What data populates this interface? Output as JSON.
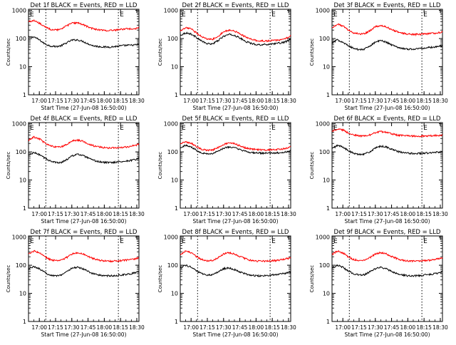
{
  "colors": {
    "events": "#000000",
    "lld": "#ff0000",
    "axis": "#000000",
    "dotted": "#000000"
  },
  "common": {
    "ylabel": "Counts/sec",
    "xlabel": "Start Time (27-Jun-08 16:50:00)",
    "x_tick_labels": [
      "17:00",
      "17:15",
      "17:30",
      "17:45",
      "18:00",
      "18:15",
      "18:30"
    ],
    "x_tick_minutes": [
      10,
      25,
      40,
      55,
      70,
      85,
      100
    ],
    "y_tick_labels": [
      "1",
      "10",
      "100",
      "1000"
    ],
    "y_tick_values": [
      1,
      10,
      100,
      1000
    ],
    "xlim_minutes": [
      0,
      102
    ],
    "ylim": [
      1,
      1100
    ],
    "yscale": "log",
    "e_marker": "E",
    "dotted_lines_minutes": [
      16,
      83
    ]
  },
  "chart_data": [
    {
      "type": "line",
      "title": "Det 1f BLACK = Events, RED = LLD",
      "series": [
        {
          "name": "BLACK = Events",
          "color": "#000000",
          "x": [
            0,
            5,
            10,
            15,
            20,
            25,
            30,
            35,
            40,
            45,
            50,
            55,
            60,
            65,
            70,
            75,
            80,
            85,
            90,
            95,
            100,
            102
          ],
          "y": [
            110,
            115,
            90,
            65,
            55,
            52,
            55,
            70,
            88,
            90,
            80,
            65,
            55,
            52,
            50,
            50,
            52,
            55,
            57,
            58,
            60,
            62
          ]
        },
        {
          "name": "RED = LLD",
          "color": "#ff0000",
          "x": [
            0,
            5,
            10,
            15,
            20,
            25,
            30,
            35,
            40,
            45,
            50,
            55,
            60,
            65,
            70,
            75,
            80,
            85,
            90,
            95,
            100,
            102
          ],
          "y": [
            400,
            430,
            350,
            260,
            215,
            200,
            215,
            280,
            350,
            360,
            320,
            260,
            220,
            205,
            195,
            195,
            200,
            210,
            220,
            225,
            230,
            240
          ]
        }
      ]
    },
    {
      "type": "line",
      "title": "Det 2f BLACK = Events, RED = LLD",
      "series": [
        {
          "name": "BLACK = Events",
          "color": "#000000",
          "x": [
            0,
            5,
            10,
            15,
            20,
            25,
            30,
            35,
            40,
            45,
            50,
            55,
            60,
            65,
            70,
            75,
            80,
            85,
            90,
            95,
            100,
            102
          ],
          "y": [
            130,
            160,
            145,
            110,
            80,
            65,
            65,
            85,
            120,
            140,
            130,
            105,
            80,
            68,
            62,
            60,
            62,
            65,
            68,
            72,
            85,
            95
          ]
        },
        {
          "name": "RED = LLD",
          "color": "#ff0000",
          "x": [
            0,
            5,
            10,
            15,
            20,
            25,
            30,
            35,
            40,
            45,
            50,
            55,
            60,
            65,
            70,
            75,
            80,
            85,
            90,
            95,
            100,
            102
          ],
          "y": [
            180,
            240,
            220,
            160,
            115,
            95,
            95,
            120,
            175,
            200,
            185,
            150,
            115,
            95,
            85,
            82,
            82,
            85,
            88,
            92,
            110,
            125
          ]
        }
      ]
    },
    {
      "type": "line",
      "title": "Det 3f BLACK = Events, RED = LLD",
      "series": [
        {
          "name": "BLACK = Events",
          "color": "#000000",
          "x": [
            0,
            5,
            10,
            15,
            20,
            25,
            30,
            35,
            40,
            45,
            50,
            55,
            60,
            65,
            70,
            75,
            80,
            85,
            90,
            95,
            100,
            102
          ],
          "y": [
            70,
            90,
            75,
            55,
            45,
            40,
            42,
            55,
            75,
            85,
            75,
            60,
            50,
            45,
            42,
            42,
            44,
            46,
            48,
            50,
            54,
            58
          ]
        },
        {
          "name": "RED = LLD",
          "color": "#ff0000",
          "x": [
            0,
            5,
            10,
            15,
            20,
            25,
            30,
            35,
            40,
            45,
            50,
            55,
            60,
            65,
            70,
            75,
            80,
            85,
            90,
            95,
            100,
            102
          ],
          "y": [
            240,
            330,
            280,
            200,
            160,
            145,
            150,
            190,
            260,
            290,
            260,
            210,
            175,
            155,
            145,
            140,
            140,
            145,
            150,
            155,
            165,
            175
          ]
        }
      ]
    },
    {
      "type": "line",
      "title": "Det 4f BLACK = Events, RED = LLD",
      "series": [
        {
          "name": "BLACK = Events",
          "color": "#000000",
          "x": [
            0,
            5,
            10,
            15,
            20,
            25,
            30,
            35,
            40,
            45,
            50,
            55,
            60,
            65,
            70,
            75,
            80,
            85,
            90,
            95,
            100,
            102
          ],
          "y": [
            75,
            95,
            80,
            60,
            48,
            42,
            42,
            52,
            72,
            82,
            75,
            60,
            50,
            45,
            42,
            42,
            43,
            45,
            47,
            50,
            55,
            60
          ]
        },
        {
          "name": "RED = LLD",
          "color": "#ff0000",
          "x": [
            0,
            5,
            10,
            15,
            20,
            25,
            30,
            35,
            40,
            45,
            50,
            55,
            60,
            65,
            70,
            75,
            80,
            85,
            90,
            95,
            100,
            102
          ],
          "y": [
            260,
            340,
            290,
            210,
            165,
            150,
            150,
            180,
            240,
            265,
            240,
            195,
            165,
            150,
            140,
            138,
            140,
            145,
            150,
            160,
            175,
            190
          ]
        }
      ]
    },
    {
      "type": "line",
      "title": "Det 5f BLACK = Events, RED = LLD",
      "series": [
        {
          "name": "BLACK = Events",
          "color": "#000000",
          "x": [
            0,
            5,
            10,
            15,
            20,
            25,
            30,
            35,
            40,
            45,
            50,
            55,
            60,
            65,
            70,
            75,
            80,
            85,
            90,
            95,
            100,
            102
          ],
          "y": [
            145,
            170,
            150,
            115,
            92,
            85,
            88,
            105,
            135,
            150,
            140,
            120,
            105,
            96,
            92,
            90,
            90,
            90,
            92,
            95,
            105,
            112
          ]
        },
        {
          "name": "RED = LLD",
          "color": "#ff0000",
          "x": [
            0,
            5,
            10,
            15,
            20,
            25,
            30,
            35,
            40,
            45,
            50,
            55,
            60,
            65,
            70,
            75,
            80,
            85,
            90,
            95,
            100,
            102
          ],
          "y": [
            190,
            230,
            205,
            155,
            125,
            115,
            118,
            142,
            185,
            210,
            195,
            165,
            140,
            128,
            122,
            118,
            118,
            120,
            122,
            128,
            140,
            150
          ]
        }
      ]
    },
    {
      "type": "line",
      "title": "Det 6f BLACK = Events, RED = LLD",
      "series": [
        {
          "name": "BLACK = Events",
          "color": "#000000",
          "x": [
            0,
            5,
            10,
            15,
            20,
            25,
            30,
            35,
            40,
            45,
            50,
            55,
            60,
            65,
            70,
            75,
            80,
            85,
            90,
            95,
            100,
            102
          ],
          "y": [
            130,
            170,
            150,
            110,
            88,
            82,
            85,
            100,
            135,
            160,
            150,
            125,
            105,
            95,
            90,
            88,
            88,
            90,
            92,
            95,
            100,
            105
          ]
        },
        {
          "name": "RED = LLD",
          "color": "#ff0000",
          "x": [
            0,
            5,
            10,
            15,
            20,
            25,
            30,
            35,
            40,
            45,
            50,
            55,
            60,
            65,
            70,
            75,
            80,
            85,
            90,
            95,
            100,
            102
          ],
          "y": [
            560,
            650,
            600,
            480,
            400,
            370,
            370,
            400,
            480,
            530,
            500,
            440,
            400,
            380,
            370,
            365,
            365,
            370,
            375,
            380,
            390,
            400
          ]
        }
      ]
    },
    {
      "type": "line",
      "title": "Det 7f BLACK = Events, RED = LLD",
      "series": [
        {
          "name": "BLACK = Events",
          "color": "#000000",
          "x": [
            0,
            5,
            10,
            15,
            20,
            25,
            30,
            35,
            40,
            45,
            50,
            55,
            60,
            65,
            70,
            75,
            80,
            85,
            90,
            95,
            100,
            102
          ],
          "y": [
            75,
            90,
            75,
            55,
            45,
            42,
            45,
            58,
            78,
            85,
            75,
            60,
            50,
            45,
            42,
            42,
            43,
            45,
            47,
            50,
            55,
            60
          ]
        },
        {
          "name": "RED = LLD",
          "color": "#ff0000",
          "x": [
            0,
            5,
            10,
            15,
            20,
            25,
            30,
            35,
            40,
            45,
            50,
            55,
            60,
            65,
            70,
            75,
            80,
            85,
            90,
            95,
            100,
            102
          ],
          "y": [
            250,
            320,
            275,
            200,
            160,
            145,
            150,
            185,
            250,
            280,
            255,
            205,
            170,
            150,
            142,
            140,
            140,
            145,
            150,
            160,
            175,
            190
          ]
        }
      ]
    },
    {
      "type": "line",
      "title": "Det 8f BLACK = Events, RED = LLD",
      "series": [
        {
          "name": "BLACK = Events",
          "color": "#000000",
          "x": [
            0,
            5,
            10,
            15,
            20,
            25,
            30,
            35,
            40,
            45,
            50,
            55,
            60,
            65,
            70,
            75,
            80,
            85,
            90,
            95,
            100,
            102
          ],
          "y": [
            80,
            100,
            85,
            62,
            50,
            45,
            46,
            58,
            75,
            80,
            70,
            58,
            50,
            45,
            42,
            42,
            43,
            45,
            47,
            50,
            55,
            60
          ]
        },
        {
          "name": "RED = LLD",
          "color": "#ff0000",
          "x": [
            0,
            5,
            10,
            15,
            20,
            25,
            30,
            35,
            40,
            45,
            50,
            55,
            60,
            65,
            70,
            75,
            80,
            85,
            90,
            95,
            100,
            102
          ],
          "y": [
            240,
            320,
            275,
            200,
            160,
            145,
            150,
            185,
            250,
            280,
            255,
            205,
            170,
            150,
            142,
            140,
            140,
            145,
            150,
            160,
            175,
            190
          ]
        }
      ]
    },
    {
      "type": "line",
      "title": "Det 9f BLACK = Events, RED = LLD",
      "series": [
        {
          "name": "BLACK = Events",
          "color": "#000000",
          "x": [
            0,
            5,
            10,
            15,
            20,
            25,
            30,
            35,
            40,
            45,
            50,
            55,
            60,
            65,
            70,
            75,
            80,
            85,
            90,
            95,
            100,
            102
          ],
          "y": [
            80,
            100,
            85,
            62,
            50,
            45,
            46,
            58,
            75,
            85,
            75,
            60,
            50,
            45,
            42,
            42,
            43,
            45,
            47,
            50,
            55,
            60
          ]
        },
        {
          "name": "RED = LLD",
          "color": "#ff0000",
          "x": [
            0,
            5,
            10,
            15,
            20,
            25,
            30,
            35,
            40,
            45,
            50,
            55,
            60,
            65,
            70,
            75,
            80,
            85,
            90,
            95,
            100,
            102
          ],
          "y": [
            240,
            320,
            275,
            200,
            160,
            145,
            150,
            185,
            250,
            280,
            255,
            205,
            170,
            150,
            142,
            140,
            140,
            145,
            150,
            160,
            175,
            190
          ]
        }
      ]
    }
  ]
}
